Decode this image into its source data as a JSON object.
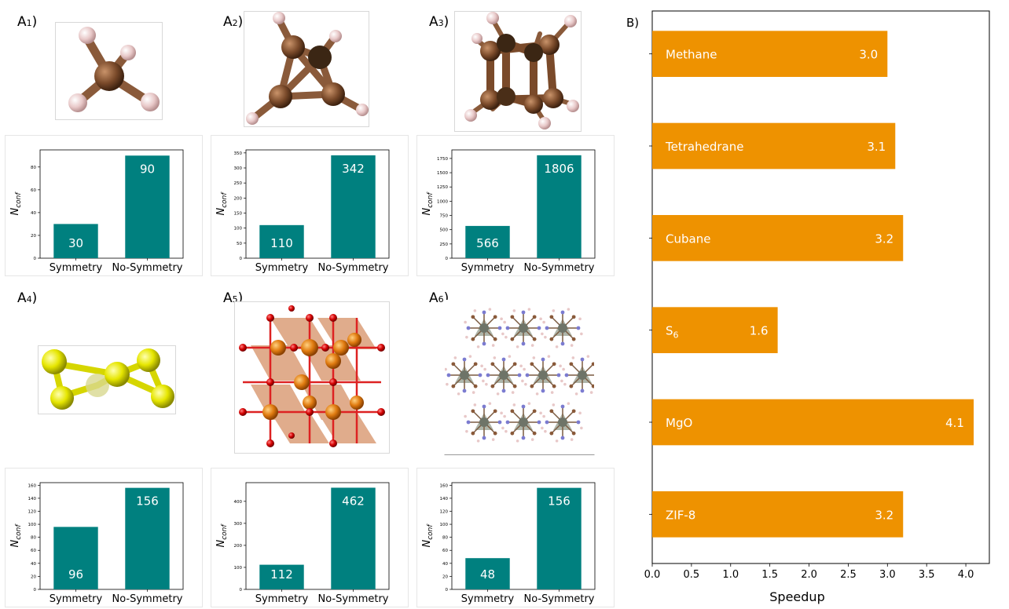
{
  "labels": {
    "a1_letter": "A",
    "a1_sub": "1",
    "a1_paren": ")",
    "a2_letter": "A",
    "a2_sub": "2",
    "a2_paren": ")",
    "a3_letter": "A",
    "a3_sub": "3",
    "a3_paren": ")",
    "a4_letter": "A",
    "a4_sub": "4",
    "a4_paren": ")",
    "a5_letter": "A",
    "a5_sub": "5",
    "a5_paren": ")",
    "a6_letter": "A",
    "a6_sub": "6",
    "a6_paren": ")",
    "b": "B)"
  },
  "colors": {
    "teal": "#00807F",
    "orange": "#EE9200",
    "carbon": "#7a4a2a",
    "hydrogen": "#e8c8c8",
    "sulfur": "#e6e600",
    "oxygen": "#d40000",
    "metal": "#e07b10"
  },
  "chart_data": [
    {
      "id": "A1",
      "type": "bar",
      "categories": [
        "Symmetry",
        "No-Symmetry"
      ],
      "values": [
        30,
        90
      ],
      "ylabel_main": "N",
      "ylabel_sub": "conf",
      "ylim": [
        0,
        95
      ],
      "yticks": [
        0,
        20,
        40,
        60,
        80
      ]
    },
    {
      "id": "A2",
      "type": "bar",
      "categories": [
        "Symmetry",
        "No-Symmetry"
      ],
      "values": [
        110,
        342
      ],
      "ylabel_main": "N",
      "ylabel_sub": "conf",
      "ylim": [
        0,
        360
      ],
      "yticks": [
        0,
        50,
        100,
        150,
        200,
        250,
        300,
        350
      ]
    },
    {
      "id": "A3",
      "type": "bar",
      "categories": [
        "Symmetry",
        "No-Symmetry"
      ],
      "values": [
        566,
        1806
      ],
      "ylabel_main": "N",
      "ylabel_sub": "conf",
      "ylim": [
        0,
        1900
      ],
      "yticks": [
        0,
        250,
        500,
        750,
        1000,
        1250,
        1500,
        1750
      ]
    },
    {
      "id": "A4",
      "type": "bar",
      "categories": [
        "Symmetry",
        "No-Symmetry"
      ],
      "values": [
        96,
        156
      ],
      "ylabel_main": "N",
      "ylabel_sub": "conf",
      "ylim": [
        0,
        164
      ],
      "yticks": [
        0,
        20,
        40,
        60,
        80,
        100,
        120,
        140,
        160
      ]
    },
    {
      "id": "A5",
      "type": "bar",
      "categories": [
        "Symmetry",
        "No-Symmetry"
      ],
      "values": [
        112,
        462
      ],
      "ylabel_main": "N",
      "ylabel_sub": "conf",
      "ylim": [
        0,
        485
      ],
      "yticks": [
        0,
        100,
        200,
        300,
        400
      ]
    },
    {
      "id": "A6",
      "type": "bar",
      "categories": [
        "Symmetry",
        "No-Symmetry"
      ],
      "values": [
        48,
        156
      ],
      "ylabel_main": "N",
      "ylabel_sub": "conf",
      "ylim": [
        0,
        164
      ],
      "yticks": [
        0,
        20,
        40,
        60,
        80,
        100,
        120,
        140,
        160
      ]
    },
    {
      "id": "B",
      "type": "bar",
      "orientation": "horizontal",
      "categories": [
        {
          "main": "Methane",
          "sub": ""
        },
        {
          "main": "Tetrahedrane",
          "sub": ""
        },
        {
          "main": "Cubane",
          "sub": ""
        },
        {
          "main": "S",
          "sub": "6"
        },
        {
          "main": "MgO",
          "sub": ""
        },
        {
          "main": "ZIF-8",
          "sub": ""
        }
      ],
      "values": [
        3.0,
        3.1,
        3.2,
        1.6,
        4.1,
        3.2
      ],
      "value_labels": [
        "3.0",
        "3.1",
        "3.2",
        "1.6",
        "4.1",
        "3.2"
      ],
      "xlabel": "Speedup",
      "xlim": [
        0,
        4.3
      ],
      "xticks": [
        0.0,
        0.5,
        1.0,
        1.5,
        2.0,
        2.5,
        3.0,
        3.5,
        4.0
      ],
      "xtick_labels": [
        "0.0",
        "0.5",
        "1.0",
        "1.5",
        "2.0",
        "2.5",
        "3.0",
        "3.5",
        "4.0"
      ]
    }
  ]
}
